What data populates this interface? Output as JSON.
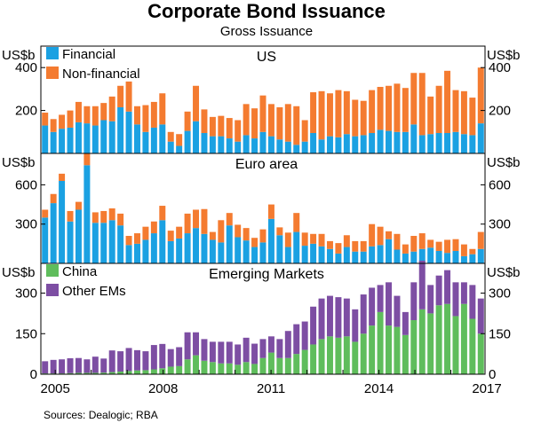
{
  "chart_data": {
    "type": "bar",
    "stacked": true,
    "title": "Corporate Bond Issuance",
    "subtitle": "Gross Issuance",
    "unit_label": "US$b",
    "x_ticks": [
      "2005",
      "2008",
      "2011",
      "2014",
      "2017"
    ],
    "source": "Sources: Dealogic; RBA",
    "colors": {
      "financial": "#1ba1e2",
      "non_financial": "#f47b30",
      "china": "#5fbd5c",
      "other_ems": "#7d4ea3"
    },
    "panels": [
      {
        "name": "US",
        "ylim": [
          0,
          500
        ],
        "ticks": [
          200,
          400
        ],
        "legend": [
          "Financial",
          "Non-financial"
        ],
        "series": [
          {
            "name": "Financial",
            "values": [
              130,
              100,
              115,
              120,
              145,
              140,
              130,
              155,
              150,
              215,
              195,
              135,
              100,
              120,
              135,
              55,
              35,
              105,
              150,
              95,
              80,
              80,
              70,
              55,
              85,
              70,
              100,
              80,
              65,
              55,
              40,
              55,
              95,
              65,
              80,
              75,
              90,
              80,
              85,
              95,
              110,
              105,
              100,
              100,
              135,
              85,
              90,
              95,
              95,
              100,
              90,
              85,
              140
            ]
          },
          {
            "name": "Non-financial",
            "values": [
              60,
              60,
              65,
              80,
              95,
              80,
              90,
              80,
              115,
              100,
              140,
              85,
              125,
              120,
              145,
              45,
              55,
              90,
              165,
              110,
              90,
              95,
              95,
              100,
              145,
              140,
              170,
              150,
              150,
              175,
              180,
              100,
              190,
              225,
              200,
              220,
              200,
              170,
              160,
              200,
              200,
              210,
              225,
              205,
              240,
              290,
              175,
              220,
              290,
              195,
              200,
              175,
              260
            ]
          }
        ]
      },
      {
        "name": "Euro area",
        "ylim": [
          0,
          840
        ],
        "ticks": [
          300,
          600
        ],
        "legend": [],
        "series": [
          {
            "name": "Financial",
            "values": [
              350,
              460,
              630,
              320,
              410,
              750,
              310,
              310,
              330,
              290,
              140,
              150,
              180,
              230,
              330,
              170,
              190,
              230,
              270,
              225,
              180,
              160,
              290,
              200,
              175,
              125,
              160,
              340,
              215,
              125,
              240,
              135,
              150,
              130,
              110,
              75,
              125,
              90,
              90,
              130,
              140,
              185,
              105,
              75,
              90,
              110,
              120,
              95,
              80,
              95,
              55,
              70,
              110
            ]
          },
          {
            "name": "Non-financial",
            "values": [
              60,
              70,
              55,
              80,
              60,
              90,
              80,
              90,
              90,
              90,
              70,
              80,
              100,
              90,
              110,
              80,
              90,
              150,
              140,
              190,
              60,
              170,
              95,
              95,
              95,
              70,
              100,
              110,
              60,
              110,
              145,
              100,
              75,
              95,
              60,
              80,
              90,
              80,
              80,
              170,
              140,
              60,
              120,
              70,
              120,
              120,
              60,
              70,
              100,
              90,
              90,
              40,
              130
            ]
          }
        ]
      },
      {
        "name": "Emerging Markets",
        "ylim": [
          0,
          410
        ],
        "ticks": [
          150,
          300
        ],
        "legend": [
          "China",
          "Other EMs"
        ],
        "series": [
          {
            "name": "China",
            "values": [
              3,
              3,
              3,
              4,
              5,
              5,
              5,
              6,
              8,
              10,
              12,
              14,
              15,
              18,
              22,
              28,
              30,
              55,
              70,
              50,
              45,
              40,
              40,
              35,
              45,
              38,
              60,
              80,
              60,
              60,
              75,
              90,
              110,
              130,
              140,
              135,
              140,
              120,
              150,
              180,
              230,
              180,
              175,
              145,
              200,
              240,
              225,
              255,
              260,
              215,
              260,
              205,
              150
            ]
          },
          {
            "name": "Other EMs",
            "values": [
              45,
              50,
              52,
              55,
              55,
              50,
              60,
              52,
              80,
              75,
              85,
              75,
              70,
              90,
              90,
              65,
              70,
              100,
              85,
              80,
              75,
              80,
              80,
              75,
              90,
              75,
              70,
              60,
              70,
              100,
              110,
              105,
              140,
              150,
              150,
              150,
              140,
              120,
              145,
              140,
              100,
              160,
              115,
              85,
              140,
              180,
              105,
              110,
              125,
              125,
              80,
              125,
              130
            ]
          }
        ]
      }
    ]
  }
}
